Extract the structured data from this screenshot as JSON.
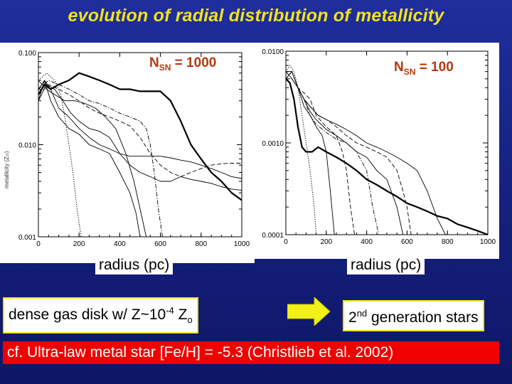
{
  "title": "evolution of radial distribution of metallicity",
  "chart_data": [
    {
      "type": "line",
      "annotation_prefix": "N",
      "annotation_sub": "SN",
      "annotation_value": " = 1000",
      "ylabel": "metallicity (Z",
      "ylabel_sub": "⊙",
      "ylabel_close": ")",
      "xlabel": "radius (pc)",
      "xlim": [
        0,
        1000
      ],
      "ylim": [
        0.001,
        0.1
      ],
      "yscale": "log",
      "xticks": [
        "0",
        "200",
        "400",
        "600",
        "800",
        "1000"
      ],
      "xtick_values": [
        0,
        200,
        400,
        600,
        800,
        1000
      ],
      "yticks": [
        "0.001",
        "0.010",
        "0.100"
      ],
      "ytick_values": [
        0.001,
        0.01,
        0.1
      ],
      "series": [
        {
          "style": "solid-thick",
          "x": [
            0,
            30,
            60,
            100,
            150,
            200,
            250,
            300,
            350,
            400,
            450,
            500,
            550,
            600,
            650,
            700,
            750,
            800,
            850,
            900,
            950,
            1000
          ],
          "y": [
            0.035,
            0.045,
            0.04,
            0.045,
            0.05,
            0.06,
            0.055,
            0.05,
            0.045,
            0.04,
            0.04,
            0.038,
            0.038,
            0.038,
            0.03,
            0.018,
            0.01,
            0.007,
            0.005,
            0.004,
            0.003,
            0.0025
          ]
        },
        {
          "style": "solid",
          "x": [
            0,
            30,
            60,
            100,
            150,
            200,
            250,
            300,
            350,
            400,
            450,
            500,
            550,
            600,
            650,
            700,
            750,
            800,
            850,
            900,
            950,
            1000
          ],
          "y": [
            0.03,
            0.05,
            0.04,
            0.025,
            0.02,
            0.015,
            0.012,
            0.01,
            0.009,
            0.008,
            0.0075,
            0.0075,
            0.0075,
            0.0075,
            0.0072,
            0.0068,
            0.0065,
            0.006,
            0.0055,
            0.005,
            0.0045,
            0.0043
          ]
        },
        {
          "style": "solid",
          "x": [
            0,
            40,
            80,
            120,
            160,
            200,
            250,
            300,
            350,
            400,
            450,
            500,
            550,
            600,
            650,
            700,
            750,
            800,
            850,
            900,
            950,
            1000
          ],
          "y": [
            0.03,
            0.045,
            0.04,
            0.03,
            0.022,
            0.018,
            0.015,
            0.014,
            0.012,
            0.008,
            0.006,
            0.005,
            0.0045,
            0.004,
            0.004,
            0.0045,
            0.0042,
            0.004,
            0.0038,
            0.0035,
            0.0033,
            0.0032
          ]
        },
        {
          "style": "solid",
          "x": [
            0,
            30,
            60,
            100,
            150,
            200,
            250,
            300,
            350,
            400,
            450,
            480,
            500
          ],
          "y": [
            0.04,
            0.05,
            0.03,
            0.02,
            0.015,
            0.013,
            0.01,
            0.009,
            0.008,
            0.005,
            0.003,
            0.0018,
            0.001
          ]
        },
        {
          "style": "solid",
          "x": [
            0,
            40,
            80,
            130,
            180,
            230,
            280,
            330,
            380,
            430,
            470,
            500,
            530
          ],
          "y": [
            0.05,
            0.04,
            0.035,
            0.03,
            0.03,
            0.028,
            0.025,
            0.02,
            0.015,
            0.008,
            0.004,
            0.002,
            0.001
          ]
        },
        {
          "style": "dashed",
          "x": [
            0,
            50,
            100,
            150,
            200,
            250,
            300,
            350,
            400,
            450,
            500,
            550,
            600,
            650,
            700,
            750,
            800,
            850,
            900,
            950,
            1000
          ],
          "y": [
            0.035,
            0.045,
            0.04,
            0.035,
            0.03,
            0.025,
            0.022,
            0.02,
            0.018,
            0.016,
            0.012,
            0.008,
            0.006,
            0.005,
            0.0045,
            0.005,
            0.0055,
            0.006,
            0.0062,
            0.0063,
            0.0063
          ]
        },
        {
          "style": "dashdot",
          "x": [
            0,
            50,
            100,
            150,
            200,
            250,
            300,
            350,
            400,
            450,
            500,
            530,
            550,
            570,
            590,
            610
          ],
          "y": [
            0.04,
            0.05,
            0.045,
            0.04,
            0.035,
            0.03,
            0.028,
            0.025,
            0.022,
            0.02,
            0.018,
            0.015,
            0.01,
            0.005,
            0.002,
            0.001
          ]
        },
        {
          "style": "dotted",
          "x": [
            0,
            40,
            80,
            110,
            130,
            150,
            170,
            190,
            210
          ],
          "y": [
            0.05,
            0.06,
            0.05,
            0.035,
            0.02,
            0.01,
            0.005,
            0.002,
            0.001
          ]
        }
      ]
    },
    {
      "type": "line",
      "annotation_prefix": "N",
      "annotation_sub": "SN",
      "annotation_value": " = 100",
      "xlabel": "radius (pc)",
      "xlim": [
        0,
        1000
      ],
      "ylim": [
        0.0001,
        0.01
      ],
      "yscale": "log",
      "xticks": [
        "0",
        "200",
        "400",
        "600",
        "800",
        "1000"
      ],
      "xtick_values": [
        0,
        200,
        400,
        600,
        800,
        1000
      ],
      "yticks": [
        "0.0001",
        "0.0010",
        "0.0100"
      ],
      "ytick_values": [
        0.0001,
        0.001,
        0.01
      ],
      "series": [
        {
          "style": "solid-thick",
          "x": [
            0,
            20,
            40,
            60,
            80,
            100,
            130,
            160,
            200,
            250,
            300,
            350,
            400,
            450,
            500,
            550,
            600,
            650,
            700,
            750,
            800,
            850,
            900,
            950,
            1000
          ],
          "y": [
            0.005,
            0.0045,
            0.003,
            0.0015,
            0.0009,
            0.0008,
            0.0008,
            0.0009,
            0.0008,
            0.0007,
            0.0006,
            0.0005,
            0.0004,
            0.00035,
            0.0003,
            0.00026,
            0.00022,
            0.0002,
            0.00018,
            0.00016,
            0.00015,
            0.00013,
            0.00012,
            0.00011,
            0.0001
          ]
        },
        {
          "style": "solid",
          "x": [
            0,
            30,
            60,
            90,
            120,
            160,
            200,
            250,
            300,
            350,
            400,
            450,
            500,
            550,
            600,
            650,
            700,
            750,
            790
          ],
          "y": [
            0.006,
            0.006,
            0.004,
            0.003,
            0.0025,
            0.002,
            0.0018,
            0.0016,
            0.0014,
            0.0012,
            0.001,
            0.0009,
            0.0008,
            0.0007,
            0.0006,
            0.0005,
            0.0003,
            0.00015,
            0.0001
          ]
        },
        {
          "style": "dashed",
          "x": [
            0,
            30,
            60,
            90,
            120,
            160,
            200,
            250,
            300,
            350,
            400,
            450,
            500,
            550,
            580,
            600,
            620
          ],
          "y": [
            0.005,
            0.005,
            0.004,
            0.003,
            0.0025,
            0.002,
            0.0018,
            0.0015,
            0.0012,
            0.001,
            0.0009,
            0.0008,
            0.0007,
            0.0005,
            0.0003,
            0.0002,
            0.0001
          ]
        },
        {
          "style": "solid",
          "x": [
            0,
            30,
            60,
            90,
            120,
            150,
            200,
            250,
            300,
            350,
            400,
            450,
            500,
            550,
            580
          ],
          "y": [
            0.005,
            0.006,
            0.004,
            0.003,
            0.0022,
            0.0018,
            0.0014,
            0.0012,
            0.001,
            0.0008,
            0.0007,
            0.0005,
            0.0004,
            0.0002,
            0.0001
          ]
        },
        {
          "style": "dashdot",
          "x": [
            0,
            30,
            60,
            90,
            120,
            150,
            200,
            250,
            300,
            350,
            400,
            430,
            460
          ],
          "y": [
            0.006,
            0.005,
            0.004,
            0.003,
            0.002,
            0.0016,
            0.0013,
            0.0011,
            0.001,
            0.0008,
            0.0005,
            0.0002,
            0.0001
          ]
        },
        {
          "style": "dashed",
          "x": [
            0,
            30,
            60,
            90,
            120,
            150,
            200,
            250,
            280,
            300,
            320,
            340
          ],
          "y": [
            0.006,
            0.005,
            0.004,
            0.0035,
            0.003,
            0.002,
            0.0015,
            0.0012,
            0.0008,
            0.0005,
            0.0002,
            0.0001
          ]
        },
        {
          "style": "solid",
          "x": [
            0,
            30,
            60,
            90,
            120,
            150,
            180,
            200,
            220,
            240
          ],
          "y": [
            0.005,
            0.006,
            0.004,
            0.0025,
            0.002,
            0.0015,
            0.0012,
            0.0008,
            0.0003,
            0.0001
          ]
        },
        {
          "style": "dotted",
          "x": [
            0,
            20,
            40,
            60,
            80,
            100,
            120,
            140,
            150
          ],
          "y": [
            0.006,
            0.007,
            0.006,
            0.004,
            0.002,
            0.001,
            0.0005,
            0.0002,
            0.0001
          ]
        }
      ]
    }
  ],
  "bottom": {
    "gas_prefix": "dense gas disk w/ Z~10",
    "gas_exp": "-4",
    "gas_z": " Z",
    "gas_sub": "o",
    "gen_num": "2",
    "gen_sup": "nd",
    "gen_text": " generation stars",
    "citation": "cf. Ultra-law metal star [Fe/H] = -5.3 (Christlieb et al. 2002)"
  },
  "colors": {
    "title": "#f2e21a",
    "nsn": "#b23a12",
    "citation_bg": "#f00000",
    "arrow": "#f2f21a"
  }
}
